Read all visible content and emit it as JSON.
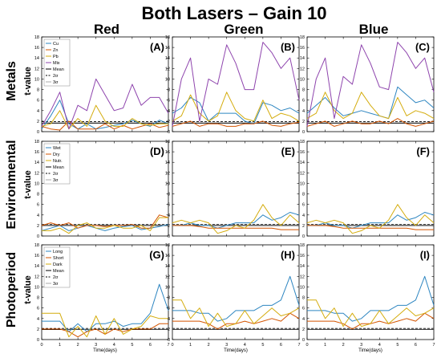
{
  "figure_title": "Both Lasers – Gain 10",
  "column_titles": [
    "Red",
    "Green",
    "Blue"
  ],
  "row_titles": [
    "Metals",
    "Environmental",
    "Photoperiod"
  ],
  "ylabel": "t-value",
  "xlabel": "Time(days)",
  "colors": {
    "blue": "#2e86c1",
    "red": "#d35400",
    "yellow": "#d4ac0d",
    "purple": "#8e44ad",
    "mean": "#000000",
    "sigma2": "#000000",
    "sigma3": "#aaaaaa"
  },
  "chart_data": [
    {
      "type": "line",
      "panel_label": "(A)",
      "ylim": [
        0,
        18
      ],
      "x": [
        0,
        0.5,
        1,
        1.5,
        2,
        2.5,
        3,
        3.5,
        4,
        4.5,
        5,
        5.5,
        6,
        6.5,
        7
      ],
      "legend": [
        "Cu",
        "Zn",
        "Pb",
        "Mix",
        "Mean",
        "2σ",
        "3σ"
      ],
      "series": [
        {
          "name": "Cu",
          "color": "blue",
          "values": [
            0.5,
            3,
            6,
            1.5,
            0.5,
            1.5,
            0.5,
            0.8,
            1.2,
            1.5,
            2.2,
            1.5,
            1.0,
            2.2,
            1.5
          ]
        },
        {
          "name": "Zn",
          "color": "red",
          "values": [
            1,
            0.5,
            0.3,
            2,
            0.5,
            0.5,
            0.5,
            1.5,
            0.5,
            1.2,
            0.5,
            1.0,
            1.5,
            0.8,
            1.2
          ]
        },
        {
          "name": "Pb",
          "color": "yellow",
          "values": [
            1,
            1.5,
            4,
            0.5,
            2.5,
            1,
            5,
            2,
            1,
            1,
            2.5,
            1.5,
            1.2,
            1.5,
            1.5
          ]
        },
        {
          "name": "Mix",
          "color": "purple",
          "values": [
            1,
            4,
            7.5,
            0.5,
            5,
            4,
            10,
            7,
            4,
            4.5,
            9,
            5,
            6.5,
            6.5,
            3.5
          ]
        }
      ],
      "hlines": [
        {
          "name": "Mean",
          "y": 1.6,
          "style": "solid"
        },
        {
          "name": "2σ",
          "y": 1.9,
          "style": "dashed"
        },
        {
          "name": "3σ",
          "y": 1.7,
          "style": "gray"
        }
      ]
    },
    {
      "type": "line",
      "panel_label": "(B)",
      "ylim": [
        0,
        18
      ],
      "x": [
        0,
        0.5,
        1,
        1.5,
        2,
        2.5,
        3,
        3.5,
        4,
        4.5,
        5,
        5.5,
        6,
        6.5,
        7
      ],
      "series": [
        {
          "name": "Cu",
          "color": "blue",
          "values": [
            3.5,
            4.5,
            6.5,
            5.5,
            2,
            3.5,
            3.5,
            3.5,
            2,
            1.5,
            5.5,
            5,
            4,
            4.5,
            3.5
          ]
        },
        {
          "name": "Zn",
          "color": "red",
          "values": [
            1,
            1.5,
            2,
            1,
            1.5,
            1.5,
            1,
            1,
            1.5,
            1.5,
            2,
            1.2,
            1,
            1.5,
            1.8
          ]
        },
        {
          "name": "Pb",
          "color": "yellow",
          "values": [
            2,
            3,
            7,
            3.5,
            2,
            3,
            7.5,
            4,
            2.5,
            2,
            6,
            2.5,
            3.5,
            3,
            2
          ]
        },
        {
          "name": "Mix",
          "color": "purple",
          "values": [
            1,
            10,
            14,
            2,
            10,
            9,
            16.5,
            13,
            8,
            8,
            17,
            15,
            12,
            14,
            6
          ]
        }
      ],
      "hlines": [
        {
          "name": "Mean",
          "y": 1.6,
          "style": "solid"
        },
        {
          "name": "2σ",
          "y": 1.9,
          "style": "dashed"
        },
        {
          "name": "3σ",
          "y": 1.7,
          "style": "gray"
        }
      ]
    },
    {
      "type": "line",
      "panel_label": "(C)",
      "ylim": [
        0,
        18
      ],
      "x": [
        0,
        0.5,
        1,
        1.5,
        2,
        2.5,
        3,
        3.5,
        4,
        4.5,
        5,
        5.5,
        6,
        6.5,
        7
      ],
      "series": [
        {
          "name": "Cu",
          "color": "blue",
          "values": [
            3.5,
            5,
            6.5,
            4.5,
            3,
            3.5,
            4,
            3.5,
            3,
            2.5,
            8.5,
            7,
            5.5,
            6,
            4.5
          ]
        },
        {
          "name": "Zn",
          "color": "red",
          "values": [
            1,
            1.5,
            2,
            1,
            1.5,
            2,
            1.5,
            1.5,
            2,
            1.5,
            2.5,
            1.5,
            1,
            1.5,
            2
          ]
        },
        {
          "name": "Pb",
          "color": "yellow",
          "values": [
            2.5,
            3.5,
            7.5,
            4,
            2.5,
            3.5,
            7.5,
            5,
            3,
            2.5,
            6.5,
            3,
            4,
            3.5,
            2.5
          ]
        },
        {
          "name": "Mix",
          "color": "purple",
          "values": [
            1,
            10,
            14,
            2.5,
            10.5,
            9,
            16.5,
            13,
            8.5,
            8,
            17,
            15,
            12,
            14,
            7.5
          ]
        }
      ],
      "hlines": [
        {
          "name": "Mean",
          "y": 1.6,
          "style": "solid"
        },
        {
          "name": "2σ",
          "y": 1.9,
          "style": "dashed"
        },
        {
          "name": "3σ",
          "y": 1.7,
          "style": "gray"
        }
      ]
    },
    {
      "type": "line",
      "panel_label": "(D)",
      "ylim": [
        0,
        18
      ],
      "x": [
        0,
        0.5,
        1,
        1.5,
        2,
        2.5,
        3,
        3.5,
        4,
        4.5,
        5,
        5.5,
        6,
        6.5,
        7
      ],
      "legend": [
        "Wet",
        "Dry",
        "Nutr.",
        "Mean",
        "2σ",
        "3σ"
      ],
      "series": [
        {
          "name": "Wet",
          "color": "blue",
          "values": [
            1,
            1.5,
            2,
            1,
            1.5,
            2,
            1.5,
            1,
            1.5,
            1.8,
            2,
            1.2,
            1.5,
            1.8,
            2.2
          ]
        },
        {
          "name": "Dry",
          "color": "red",
          "values": [
            2,
            2.5,
            2,
            2.5,
            1.5,
            2,
            2,
            1.8,
            2,
            2,
            2.2,
            1.5,
            1.5,
            4,
            3.5
          ]
        },
        {
          "name": "Nutr.",
          "color": "yellow",
          "values": [
            1,
            1,
            1.5,
            0.5,
            2,
            2.5,
            1.5,
            1.5,
            2,
            1.5,
            1.5,
            2,
            1,
            3.5,
            3.5
          ]
        }
      ],
      "hlines": [
        {
          "name": "Mean",
          "y": 2.0,
          "style": "solid"
        },
        {
          "name": "2σ",
          "y": 2.2,
          "style": "dashed"
        },
        {
          "name": "3σ",
          "y": 2.1,
          "style": "gray"
        }
      ]
    },
    {
      "type": "line",
      "panel_label": "(E)",
      "ylim": [
        0,
        18
      ],
      "x": [
        0,
        0.5,
        1,
        1.5,
        2,
        2.5,
        3,
        3.5,
        4,
        4.5,
        5,
        5.5,
        6,
        6.5,
        7
      ],
      "series": [
        {
          "name": "Wet",
          "color": "blue",
          "values": [
            2,
            2,
            2.5,
            2,
            2,
            1.5,
            2,
            2.5,
            2.5,
            2.5,
            4,
            3,
            3.5,
            4.5,
            4
          ]
        },
        {
          "name": "Dry",
          "color": "red",
          "values": [
            2,
            2,
            2,
            1.8,
            1.5,
            1.5,
            1.5,
            1.5,
            1.5,
            1.5,
            1.5,
            1.5,
            1.2,
            1.2,
            1.2
          ]
        },
        {
          "name": "Nutr.",
          "color": "yellow",
          "values": [
            2.5,
            3,
            2.5,
            3,
            2.5,
            0.5,
            1,
            2,
            1.5,
            3,
            6,
            3.5,
            2,
            4,
            2.5
          ]
        }
      ],
      "hlines": [
        {
          "name": "Mean",
          "y": 2.0,
          "style": "solid"
        },
        {
          "name": "2σ",
          "y": 2.2,
          "style": "dashed"
        },
        {
          "name": "3σ",
          "y": 2.1,
          "style": "gray"
        }
      ]
    },
    {
      "type": "line",
      "panel_label": "(F)",
      "ylim": [
        0,
        18
      ],
      "x": [
        0,
        0.5,
        1,
        1.5,
        2,
        2.5,
        3,
        3.5,
        4,
        4.5,
        5,
        5.5,
        6,
        6.5,
        7
      ],
      "series": [
        {
          "name": "Wet",
          "color": "blue",
          "values": [
            2,
            2,
            2.5,
            2,
            2,
            1.5,
            2,
            2.5,
            2.5,
            2.5,
            4,
            3,
            3.5,
            4.5,
            4
          ]
        },
        {
          "name": "Dry",
          "color": "red",
          "values": [
            2,
            2,
            2,
            1.8,
            1.5,
            1.5,
            1.5,
            1.5,
            1.5,
            1.5,
            1.5,
            1.5,
            1.2,
            1.2,
            1.2
          ]
        },
        {
          "name": "Nutr.",
          "color": "yellow",
          "values": [
            2.5,
            3,
            2.5,
            3,
            2.5,
            0.5,
            1,
            2,
            1.5,
            3,
            6,
            3.5,
            2,
            4,
            2.5
          ]
        }
      ],
      "hlines": [
        {
          "name": "Mean",
          "y": 2.0,
          "style": "solid"
        },
        {
          "name": "2σ",
          "y": 2.2,
          "style": "dashed"
        },
        {
          "name": "3σ",
          "y": 2.1,
          "style": "gray"
        }
      ]
    },
    {
      "type": "line",
      "panel_label": "(G)",
      "ylim": [
        0,
        18
      ],
      "x": [
        0,
        0.5,
        1,
        1.5,
        2,
        2.5,
        3,
        3.5,
        4,
        4.5,
        5,
        5.5,
        6,
        6.5,
        7
      ],
      "legend": [
        "Long",
        "Short",
        "Dark",
        "Mean",
        "2σ",
        "3σ"
      ],
      "series": [
        {
          "name": "Long",
          "color": "blue",
          "values": [
            3.5,
            3.5,
            3.5,
            1.5,
            3,
            1.5,
            3,
            3,
            3.5,
            2.5,
            3,
            3,
            5,
            10.5,
            5.5
          ]
        },
        {
          "name": "Short",
          "color": "red",
          "values": [
            2,
            2,
            2,
            1.5,
            0.5,
            1.5,
            2,
            1,
            2,
            1.5,
            2,
            2,
            2,
            3,
            3
          ]
        },
        {
          "name": "Dark",
          "color": "yellow",
          "values": [
            5,
            5,
            5,
            0.5,
            2.5,
            0.5,
            4.5,
            1,
            4,
            1,
            2,
            2.5,
            4.5,
            4,
            4
          ]
        }
      ],
      "hlines": [
        {
          "name": "Mean",
          "y": 1.9,
          "style": "solid"
        },
        {
          "name": "2σ",
          "y": 2.1,
          "style": "dashed"
        },
        {
          "name": "3σ",
          "y": 2.0,
          "style": "gray"
        }
      ]
    },
    {
      "type": "line",
      "panel_label": "(H)",
      "ylim": [
        0,
        18
      ],
      "x": [
        0,
        0.5,
        1,
        1.5,
        2,
        2.5,
        3,
        3.5,
        4,
        4.5,
        5,
        5.5,
        6,
        6.5,
        7
      ],
      "series": [
        {
          "name": "Long",
          "color": "blue",
          "values": [
            5.5,
            5.5,
            5.5,
            5,
            5,
            3.5,
            4,
            5.5,
            5.5,
            5.5,
            6.5,
            6.5,
            7.5,
            12,
            6.5
          ]
        },
        {
          "name": "Short",
          "color": "red",
          "values": [
            3.5,
            3.5,
            3.5,
            3.5,
            3,
            2,
            3,
            3,
            3.5,
            3,
            3.5,
            4,
            3.5,
            5,
            4
          ]
        },
        {
          "name": "Dark",
          "color": "yellow",
          "values": [
            7.5,
            7.5,
            4,
            6,
            2.5,
            5,
            2.5,
            3,
            5.5,
            3,
            4.5,
            6,
            4.5,
            5,
            6
          ]
        }
      ],
      "hlines": [
        {
          "name": "Mean",
          "y": 1.9,
          "style": "solid"
        },
        {
          "name": "2σ",
          "y": 2.1,
          "style": "dashed"
        },
        {
          "name": "3σ",
          "y": 2.0,
          "style": "gray"
        }
      ]
    },
    {
      "type": "line",
      "panel_label": "(I)",
      "ylim": [
        0,
        18
      ],
      "x": [
        0,
        0.5,
        1,
        1.5,
        2,
        2.5,
        3,
        3.5,
        4,
        4.5,
        5,
        5.5,
        6,
        6.5,
        7
      ],
      "series": [
        {
          "name": "Long",
          "color": "blue",
          "values": [
            5.5,
            5.5,
            5.5,
            5,
            5,
            3.5,
            4,
            5.5,
            5.5,
            5.5,
            6.5,
            6.5,
            7.5,
            12,
            6.5
          ]
        },
        {
          "name": "Short",
          "color": "red",
          "values": [
            3.5,
            3.5,
            3.5,
            3.5,
            3,
            2,
            3,
            3,
            3.5,
            3,
            3.5,
            4,
            3.5,
            5,
            4
          ]
        },
        {
          "name": "Dark",
          "color": "yellow",
          "values": [
            7.5,
            7.5,
            4,
            6,
            2.5,
            5,
            2.5,
            3,
            5.5,
            3,
            4.5,
            6,
            4.5,
            5,
            6
          ]
        }
      ],
      "hlines": [
        {
          "name": "Mean",
          "y": 1.9,
          "style": "solid"
        },
        {
          "name": "2σ",
          "y": 2.1,
          "style": "dashed"
        },
        {
          "name": "3σ",
          "y": 2.0,
          "style": "gray"
        }
      ]
    }
  ],
  "yticks": [
    0,
    2,
    4,
    6,
    8,
    10,
    12,
    14,
    16,
    18
  ],
  "xticks": [
    0,
    1,
    2,
    3,
    4,
    5,
    6,
    7
  ]
}
